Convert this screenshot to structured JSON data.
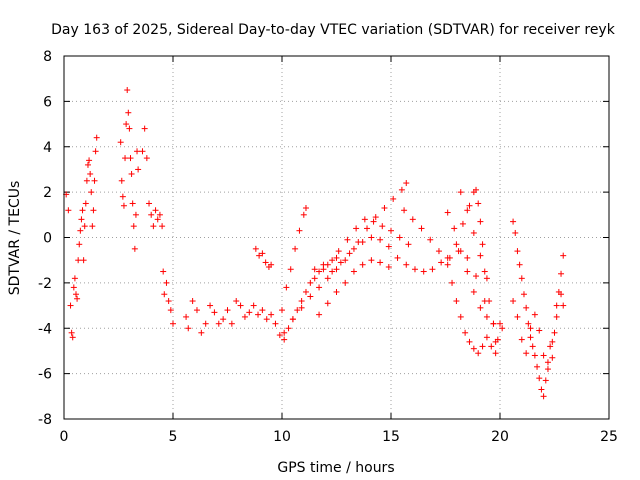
{
  "chart_data": {
    "type": "scatter",
    "title": "Day 163 of 2025, Sidereal Day-to-day VTEC variation (SDTVAR) for receiver reyk",
    "xlabel": "GPS time / hours",
    "ylabel": "SDTVAR / TECUs",
    "xlim": [
      0,
      25
    ],
    "ylim": [
      -8,
      8
    ],
    "xticks": [
      "0",
      "5",
      "10",
      "15",
      "20",
      "25"
    ],
    "yticks": [
      "8",
      "6",
      "4",
      "2",
      "0",
      "-2",
      "-4",
      "-6",
      "-8"
    ],
    "grid": true,
    "marker": "+",
    "series_color": "#ff0000",
    "series": [
      {
        "name": "SDTVAR",
        "segments": [
          [
            [
              0.1,
              1.9
            ],
            [
              0.2,
              1.2
            ],
            [
              0.3,
              -3.0
            ],
            [
              0.35,
              -4.2
            ],
            [
              0.4,
              -4.4
            ],
            [
              0.45,
              -2.2
            ],
            [
              0.5,
              -1.8
            ],
            [
              0.55,
              -2.5
            ],
            [
              0.6,
              -2.7
            ],
            [
              0.65,
              -1.0
            ],
            [
              0.7,
              -0.3
            ],
            [
              0.75,
              0.3
            ],
            [
              0.8,
              0.8
            ],
            [
              0.85,
              1.2
            ],
            [
              0.9,
              -1.0
            ],
            [
              0.95,
              0.5
            ],
            [
              1.0,
              1.5
            ],
            [
              1.05,
              2.5
            ],
            [
              1.1,
              3.2
            ],
            [
              1.15,
              3.4
            ],
            [
              1.2,
              2.8
            ],
            [
              1.25,
              2.0
            ],
            [
              1.3,
              0.5
            ],
            [
              1.35,
              1.2
            ],
            [
              1.4,
              2.5
            ],
            [
              1.45,
              3.8
            ],
            [
              1.5,
              4.4
            ]
          ],
          [
            [
              2.6,
              4.2
            ],
            [
              2.65,
              2.5
            ],
            [
              2.7,
              1.8
            ],
            [
              2.75,
              1.4
            ],
            [
              2.8,
              3.5
            ],
            [
              2.85,
              5.0
            ],
            [
              2.9,
              6.5
            ],
            [
              2.95,
              5.5
            ],
            [
              3.0,
              4.8
            ],
            [
              3.05,
              3.5
            ],
            [
              3.1,
              2.8
            ],
            [
              3.15,
              1.5
            ],
            [
              3.2,
              0.5
            ],
            [
              3.25,
              -0.5
            ],
            [
              3.3,
              1.0
            ],
            [
              3.35,
              3.8
            ],
            [
              3.4,
              3.0
            ]
          ],
          [
            [
              3.6,
              3.8
            ],
            [
              3.7,
              4.8
            ],
            [
              3.8,
              3.5
            ],
            [
              3.9,
              1.5
            ],
            [
              4.0,
              1.0
            ],
            [
              4.1,
              0.5
            ],
            [
              4.2,
              1.2
            ],
            [
              4.3,
              0.8
            ],
            [
              4.4,
              1.0
            ],
            [
              4.5,
              0.5
            ],
            [
              4.55,
              -1.5
            ],
            [
              4.6,
              -2.5
            ],
            [
              4.7,
              -2.0
            ],
            [
              4.8,
              -2.8
            ],
            [
              4.9,
              -3.2
            ],
            [
              5.0,
              -3.8
            ]
          ],
          [
            [
              5.6,
              -3.5
            ],
            [
              5.7,
              -4.0
            ],
            [
              5.9,
              -2.8
            ],
            [
              6.1,
              -3.2
            ],
            [
              6.3,
              -4.2
            ],
            [
              6.5,
              -3.8
            ],
            [
              6.7,
              -3.0
            ],
            [
              6.9,
              -3.3
            ],
            [
              7.1,
              -3.8
            ],
            [
              7.3,
              -3.6
            ],
            [
              7.5,
              -3.2
            ],
            [
              7.7,
              -3.8
            ],
            [
              7.9,
              -2.8
            ],
            [
              8.1,
              -3.0
            ],
            [
              8.3,
              -3.5
            ],
            [
              8.5,
              -3.3
            ],
            [
              8.7,
              -3.0
            ],
            [
              8.9,
              -3.4
            ],
            [
              9.1,
              -3.2
            ],
            [
              9.3,
              -3.6
            ],
            [
              9.5,
              -3.4
            ],
            [
              9.7,
              -3.8
            ],
            [
              9.9,
              -4.3
            ],
            [
              10.1,
              -4.5
            ],
            [
              10.3,
              -4.0
            ],
            [
              10.5,
              -3.6
            ],
            [
              10.7,
              -3.2
            ],
            [
              10.9,
              -2.8
            ],
            [
              11.1,
              -2.4
            ],
            [
              11.3,
              -2.0
            ],
            [
              11.5,
              -1.8
            ],
            [
              11.7,
              -1.5
            ],
            [
              11.9,
              -1.4
            ],
            [
              12.1,
              -1.2
            ],
            [
              12.3,
              -1.0
            ],
            [
              12.5,
              -0.9
            ]
          ],
          [
            [
              8.8,
              -0.5
            ],
            [
              8.95,
              -0.8
            ],
            [
              9.1,
              -0.7
            ],
            [
              9.25,
              -1.1
            ],
            [
              9.4,
              -1.3
            ],
            [
              9.5,
              -1.2
            ]
          ],
          [
            [
              10.0,
              -3.2
            ],
            [
              10.2,
              -2.2
            ],
            [
              10.4,
              -1.4
            ],
            [
              10.6,
              -0.5
            ],
            [
              10.8,
              0.3
            ],
            [
              11.0,
              1.0
            ],
            [
              11.1,
              1.3
            ]
          ],
          [
            [
              10.1,
              -4.2
            ],
            [
              10.5,
              -3.6
            ],
            [
              10.9,
              -3.1
            ],
            [
              11.3,
              -2.6
            ],
            [
              11.7,
              -2.2
            ],
            [
              12.1,
              -1.8
            ],
            [
              12.5,
              -1.4
            ],
            [
              12.9,
              -1.0
            ],
            [
              13.3,
              -0.5
            ],
            [
              13.7,
              -0.2
            ],
            [
              14.1,
              0.0
            ],
            [
              14.5,
              -0.1
            ],
            [
              14.9,
              -0.4
            ],
            [
              15.3,
              -0.9
            ],
            [
              15.7,
              -1.2
            ],
            [
              16.1,
              -1.4
            ],
            [
              16.5,
              -1.5
            ],
            [
              16.9,
              -1.4
            ],
            [
              17.3,
              -1.1
            ],
            [
              17.7,
              -0.9
            ],
            [
              18.1,
              -0.6
            ],
            [
              18.5,
              -0.9
            ],
            [
              18.9,
              -1.7
            ],
            [
              19.3,
              -2.8
            ],
            [
              19.7,
              -3.8
            ],
            [
              19.9,
              -4.5
            ]
          ],
          [
            [
              11.7,
              -3.4
            ],
            [
              12.1,
              -2.9
            ],
            [
              12.5,
              -2.4
            ],
            [
              12.9,
              -2.0
            ],
            [
              13.3,
              -1.5
            ],
            [
              13.7,
              -1.2
            ],
            [
              14.1,
              -1.0
            ],
            [
              14.5,
              -1.1
            ],
            [
              14.9,
              -1.3
            ]
          ],
          [
            [
              11.5,
              -1.4
            ],
            [
              11.9,
              -1.2
            ],
            [
              12.3,
              -1.5
            ],
            [
              12.7,
              -1.1
            ],
            [
              13.1,
              -0.7
            ],
            [
              13.5,
              -0.2
            ],
            [
              13.9,
              0.4
            ],
            [
              14.3,
              0.9
            ],
            [
              14.7,
              1.3
            ],
            [
              15.1,
              1.7
            ],
            [
              15.5,
              2.1
            ],
            [
              15.7,
              2.4
            ]
          ],
          [
            [
              12.6,
              -0.6
            ],
            [
              13.0,
              -0.1
            ],
            [
              13.4,
              0.4
            ],
            [
              13.8,
              0.8
            ],
            [
              14.2,
              0.7
            ],
            [
              14.6,
              0.5
            ],
            [
              15.0,
              0.3
            ],
            [
              15.4,
              0.0
            ],
            [
              15.8,
              -0.3
            ]
          ],
          [
            [
              15.6,
              1.2
            ],
            [
              16.0,
              0.8
            ],
            [
              16.4,
              0.4
            ],
            [
              16.8,
              -0.1
            ],
            [
              17.2,
              -0.6
            ],
            [
              17.6,
              -0.9
            ],
            [
              18.0,
              -0.3
            ],
            [
              18.3,
              0.6
            ],
            [
              18.6,
              1.4
            ],
            [
              18.8,
              2.0
            ],
            [
              18.9,
              2.1
            ],
            [
              19.0,
              1.5
            ],
            [
              19.1,
              0.7
            ],
            [
              19.2,
              -0.3
            ],
            [
              19.3,
              -1.5
            ],
            [
              19.5,
              -2.8
            ],
            [
              19.7,
              -3.8
            ],
            [
              19.8,
              -4.6
            ]
          ],
          [
            [
              17.6,
              -1.2
            ],
            [
              17.8,
              -2.0
            ],
            [
              18.0,
              -2.8
            ],
            [
              18.2,
              -3.5
            ],
            [
              18.4,
              -4.2
            ],
            [
              18.6,
              -4.6
            ],
            [
              18.8,
              -4.9
            ],
            [
              19.0,
              -5.1
            ],
            [
              19.2,
              -4.8
            ],
            [
              19.4,
              -4.4
            ],
            [
              19.6,
              -4.8
            ],
            [
              19.8,
              -5.1
            ]
          ],
          [
            [
              17.6,
              1.1
            ],
            [
              17.9,
              0.4
            ],
            [
              18.2,
              -0.6
            ],
            [
              18.5,
              -1.5
            ],
            [
              18.8,
              -2.4
            ],
            [
              19.1,
              -3.1
            ],
            [
              19.4,
              -3.5
            ]
          ],
          [
            [
              18.2,
              2.0
            ],
            [
              18.5,
              1.2
            ],
            [
              18.8,
              0.2
            ],
            [
              19.1,
              -0.8
            ],
            [
              19.4,
              -1.8
            ]
          ],
          [
            [
              20.0,
              -3.8
            ],
            [
              20.1,
              -4.0
            ]
          ],
          [
            [
              20.6,
              0.7
            ],
            [
              20.7,
              0.2
            ],
            [
              20.8,
              -0.6
            ],
            [
              20.9,
              -1.2
            ],
            [
              21.0,
              -1.8
            ],
            [
              21.1,
              -2.5
            ],
            [
              21.2,
              -3.1
            ],
            [
              21.3,
              -3.8
            ],
            [
              21.4,
              -4.4
            ],
            [
              21.5,
              -4.8
            ],
            [
              21.6,
              -5.2
            ],
            [
              21.7,
              -5.7
            ],
            [
              21.8,
              -6.2
            ],
            [
              21.9,
              -6.7
            ],
            [
              22.0,
              -7.0
            ],
            [
              22.1,
              -6.3
            ],
            [
              22.2,
              -5.5
            ],
            [
              22.3,
              -4.8
            ],
            [
              22.4,
              -5.3
            ],
            [
              22.5,
              -4.2
            ],
            [
              22.6,
              -3.5
            ],
            [
              22.7,
              -2.4
            ],
            [
              22.8,
              -1.6
            ],
            [
              22.9,
              -0.8
            ]
          ],
          [
            [
              20.6,
              -2.8
            ],
            [
              20.8,
              -3.5
            ],
            [
              21.0,
              -4.5
            ],
            [
              21.2,
              -5.1
            ],
            [
              21.4,
              -4.0
            ],
            [
              21.6,
              -3.4
            ],
            [
              21.8,
              -4.1
            ],
            [
              22.0,
              -5.2
            ],
            [
              22.2,
              -5.8
            ],
            [
              22.4,
              -4.6
            ],
            [
              22.6,
              -3.0
            ],
            [
              22.8,
              -2.5
            ],
            [
              22.9,
              -3.0
            ]
          ]
        ]
      }
    ]
  }
}
